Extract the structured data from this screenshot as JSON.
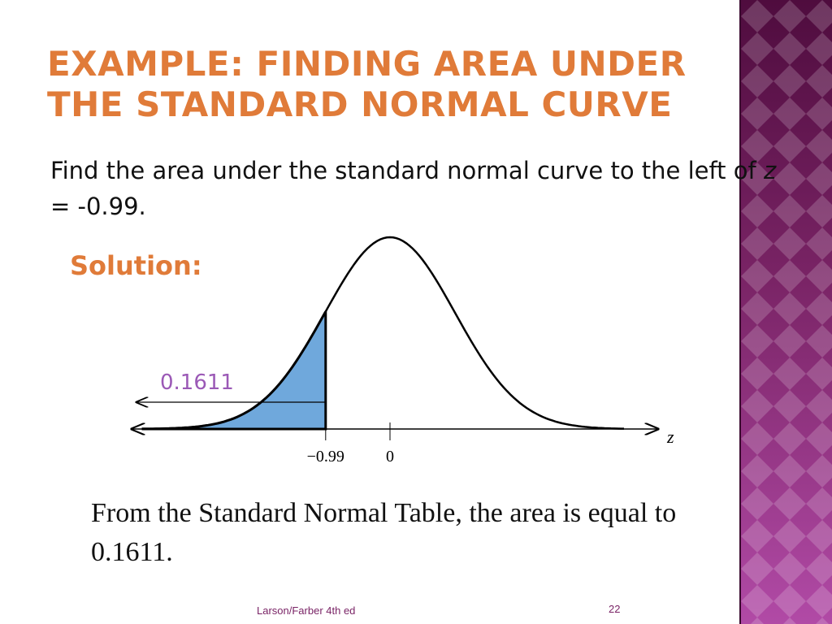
{
  "slide": {
    "title_line1": "EXAMPLE: FINDING AREA UNDER",
    "title_line2": "THE STANDARD NORMAL CURVE",
    "problem_part1": "Find the area under the standard normal curve to the left of ",
    "problem_var": "z",
    "problem_part2": " = -0.99.",
    "solution_label": "Solution:",
    "conclusion": "From the Standard Normal Table, the area is equal to 0.1611.",
    "footer": "Larson/Farber 4th ed",
    "page_number": "22"
  },
  "colors": {
    "accent": "#e07b39",
    "shade": "#6fa8dc",
    "area_label": "#9b59b6",
    "band_top": "#4f0c3e",
    "band_bottom": "#b14aa6"
  },
  "chart_data": {
    "type": "area",
    "x": [
      -3,
      -2.5,
      -2,
      -1.5,
      -1,
      -0.5,
      0,
      0.5,
      1,
      1.5,
      2,
      2.5,
      3
    ],
    "y": [
      0.0044,
      0.0175,
      0.054,
      0.1295,
      0.242,
      0.3521,
      0.3989,
      0.3521,
      0.242,
      0.1295,
      0.054,
      0.0175,
      0.0044
    ],
    "shade_left_of": -0.99,
    "shaded_area": 0.1611,
    "tick_labels": [
      "−0.99",
      "0"
    ],
    "tick_values": [
      -0.99,
      0
    ],
    "xlabel": "z",
    "area_label": "0.1611",
    "grid": false,
    "legend": "none"
  }
}
